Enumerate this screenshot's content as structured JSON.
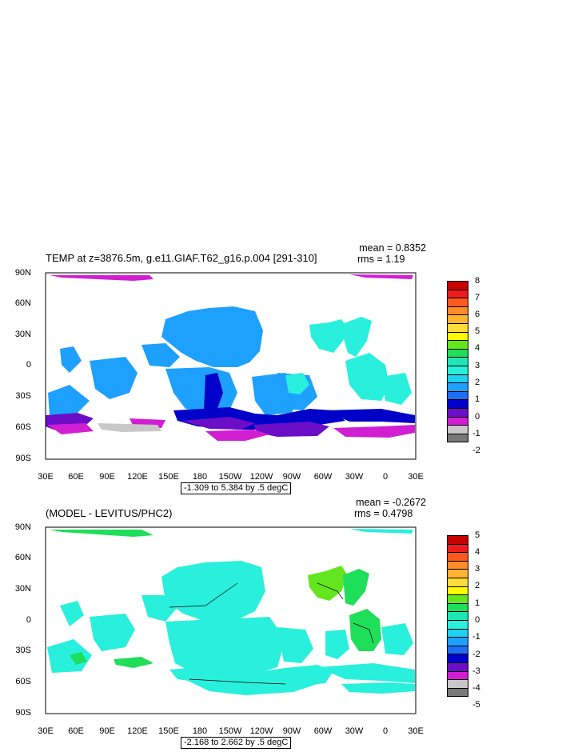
{
  "panel1": {
    "title": "TEMP at z=3876.5m, g.e11.GIAF.T62_g16.p.004 [291-310]",
    "mean": "mean = 0.8352",
    "rms": "rms = 1.19",
    "range_note": "-1.309 to 5.384 by .5 degC",
    "lat_labels": [
      "90N",
      "60N",
      "30N",
      "0",
      "30S",
      "60S",
      "90S"
    ],
    "lon_labels": [
      "30E",
      "60E",
      "90E",
      "120E",
      "150E",
      "180",
      "150W",
      "120W",
      "90W",
      "60W",
      "30W",
      "0",
      "30E"
    ],
    "colorbar": {
      "labels": [
        "8",
        "7",
        "6",
        "5",
        "4",
        "3",
        "2",
        "1",
        "0",
        "-1",
        "-2"
      ],
      "colors": [
        "#c80000",
        "#ee1c1c",
        "#ff5a1e",
        "#ff8c28",
        "#ffb432",
        "#ffdc3c",
        "#fffa00",
        "#64e61e",
        "#1ede5a",
        "#1ee6b4",
        "#28f0dc",
        "#1ed2f0",
        "#1ea0ff",
        "#1e6ef5",
        "#0000c8",
        "#6a0ec8",
        "#d21ed2",
        "#c8c8c8",
        "#787878"
      ]
    }
  },
  "panel2": {
    "title": "(MODEL - LEVITUS/PHC2)",
    "mean": "mean = -0.2672",
    "rms": "rms = 0.4798",
    "range_note": "-2.168 to 2.662 by .5 degC",
    "lat_labels": [
      "90N",
      "60N",
      "30N",
      "0",
      "30S",
      "60S",
      "90S"
    ],
    "lon_labels": [
      "30E",
      "60E",
      "90E",
      "120E",
      "150E",
      "180",
      "150W",
      "120W",
      "90W",
      "60W",
      "30W",
      "0",
      "30E"
    ],
    "colorbar": {
      "labels": [
        "5",
        "4",
        "3",
        "2",
        "1",
        "0",
        "-1",
        "-2",
        "-3",
        "-4",
        "-5"
      ],
      "colors": [
        "#c80000",
        "#ee1c1c",
        "#ff5a1e",
        "#ff8c28",
        "#ffb432",
        "#ffdc3c",
        "#fffa00",
        "#64e61e",
        "#1ede5a",
        "#1ee6b4",
        "#28f0dc",
        "#1ed2f0",
        "#1ea0ff",
        "#1e6ef5",
        "#0000c8",
        "#6a0ec8",
        "#d21ed2",
        "#c8c8c8",
        "#787878"
      ]
    }
  }
}
